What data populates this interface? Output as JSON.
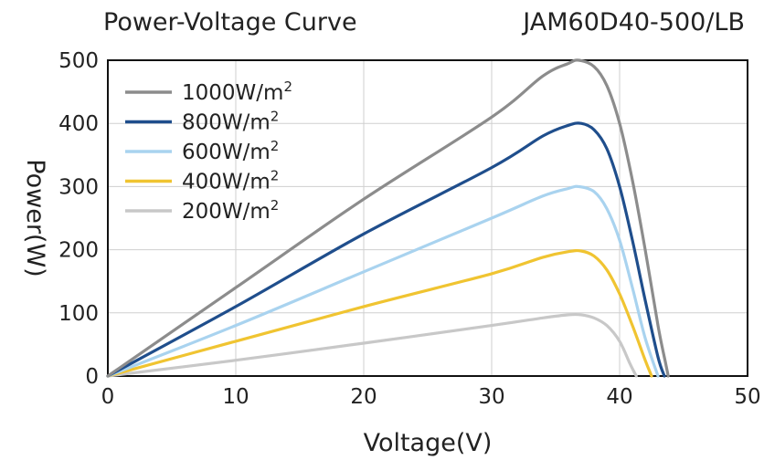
{
  "chart_data": {
    "type": "line",
    "title_left": "Power-Voltage Curve",
    "title_right": "JAM60D40-500/LB",
    "xlabel": "Voltage(V)",
    "ylabel": "Power(W)",
    "xlim": [
      0,
      50
    ],
    "ylim": [
      0,
      500
    ],
    "xticks": [
      0,
      10,
      20,
      30,
      40,
      50
    ],
    "yticks": [
      0,
      100,
      200,
      300,
      400,
      500
    ],
    "grid": true,
    "legend_position": "top-left",
    "series": [
      {
        "name": "1000W/m",
        "sup": "2",
        "color": "#8c8c8c",
        "x": [
          0,
          10,
          20,
          30,
          34,
          36,
          36.8,
          38,
          39,
          40,
          41,
          42,
          43,
          43.6,
          43.8
        ],
        "y": [
          0,
          140,
          280,
          410,
          475,
          495,
          500,
          490,
          460,
          400,
          310,
          200,
          80,
          20,
          0
        ]
      },
      {
        "name": "800W/m",
        "sup": "2",
        "color": "#1f4e8c",
        "x": [
          0,
          10,
          20,
          30,
          34,
          36,
          37,
          38,
          39,
          40,
          41,
          42,
          43,
          43.5
        ],
        "y": [
          0,
          110,
          225,
          330,
          380,
          397,
          400,
          390,
          360,
          300,
          215,
          120,
          30,
          0
        ]
      },
      {
        "name": "600W/m",
        "sup": "2",
        "color": "#a9d3ef",
        "x": [
          0,
          10,
          20,
          30,
          34,
          36,
          36.8,
          38,
          39,
          40,
          41,
          42,
          43
        ],
        "y": [
          0,
          80,
          165,
          250,
          285,
          297,
          300,
          292,
          265,
          215,
          140,
          60,
          0
        ]
      },
      {
        "name": "400W/m",
        "sup": "2",
        "color": "#f0c431",
        "x": [
          0,
          10,
          20,
          30,
          34,
          36,
          37,
          38,
          39,
          40,
          41,
          42,
          42.5
        ],
        "y": [
          0,
          55,
          110,
          162,
          188,
          197,
          198,
          190,
          168,
          130,
          80,
          25,
          0
        ]
      },
      {
        "name": "200W/m",
        "sup": "2",
        "color": "#c8c8c8",
        "x": [
          0,
          10,
          20,
          30,
          34,
          36,
          37,
          38,
          39,
          40,
          40.8,
          41.3
        ],
        "y": [
          0,
          25,
          52,
          80,
          92,
          97,
          97,
          92,
          80,
          55,
          20,
          0
        ]
      }
    ]
  }
}
